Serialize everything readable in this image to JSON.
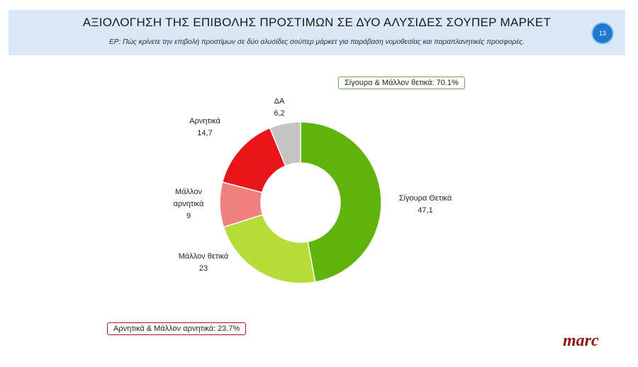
{
  "header": {
    "title": "ΑΞΙΟΛΟΓΗΣΗ ΤΗΣ ΕΠΙΒΟΛΗΣ ΠΡΟΣΤΙΜΩΝ ΣΕ ΔΥΟ ΑΛΥΣΙΔΕΣ ΣΟΥΠΕΡ ΜΑΡΚΕΤ",
    "subtitle": "ΕΡ: Πώς κρίνετε την επιβολή προστίμων σε δύο αλυσίδες σούπερ μάρκετ για παράβαση νομοθεσίας και παραπλανητικές προσφορές.",
    "page_number": "13"
  },
  "summary": {
    "positive": "Σίγουρα & Μάλλον θετικά: 70.1%",
    "negative": "Αρνητικά & Μάλλον αρνητικά: 23.7%"
  },
  "logo_text": "marc",
  "colors": {
    "header_bg": "#dbe9f6",
    "badge": "#1f78d1",
    "positive_border": "#6aa84f",
    "negative_border": "#9b1c1c"
  },
  "chart_data": {
    "type": "pie",
    "donut": true,
    "categories": [
      "Σίγουρα Θετικά",
      "Μάλλον θετικά",
      "Μάλλον αρνητικά",
      "Αρνητικά",
      "ΔΑ"
    ],
    "values": [
      47.1,
      23,
      9,
      14.7,
      6.2
    ],
    "value_labels": [
      "47,1",
      "23",
      "9",
      "14,7",
      "6,2"
    ],
    "label_lines": [
      [
        "Σίγουρα Θετικά"
      ],
      [
        "Μάλλον θετικά"
      ],
      [
        "Μάλλον",
        "αρνητικά"
      ],
      [
        "Αρνητικά"
      ],
      [
        "ΔΑ"
      ]
    ],
    "colors": [
      "#5fb30a",
      "#b6dc3a",
      "#f08080",
      "#e8151b",
      "#c4c4c4"
    ]
  }
}
